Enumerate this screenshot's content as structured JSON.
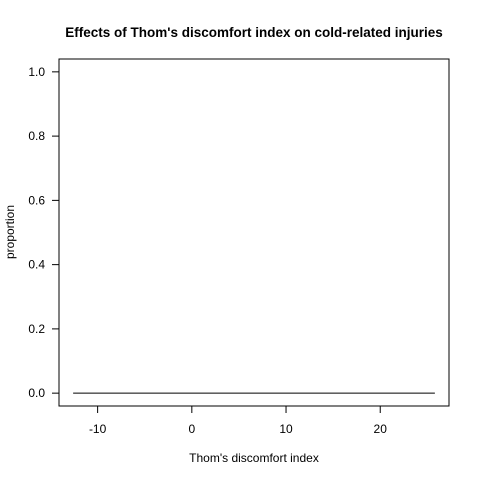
{
  "chart_data": {
    "type": "line",
    "title": "Effects of Thom's discomfort index on cold-related injuries",
    "xlabel": "Thom's discomfort index",
    "ylabel": "proportion",
    "xlim": [
      -14.1,
      27.3
    ],
    "ylim": [
      -0.04,
      1.04
    ],
    "x_ticks": [
      -10,
      0,
      10,
      20
    ],
    "y_ticks": [
      0.0,
      0.2,
      0.4,
      0.6,
      0.8,
      1.0
    ],
    "x_tick_labels": [
      "-10",
      "0",
      "10",
      "20"
    ],
    "y_tick_labels": [
      "0.0",
      "0.2",
      "0.4",
      "0.6",
      "0.8",
      "1.0"
    ],
    "series": [
      {
        "x": [
          -12.6,
          25.8
        ],
        "y": [
          0,
          0
        ],
        "color": "#000000"
      }
    ],
    "grid": false,
    "legend": "none"
  }
}
